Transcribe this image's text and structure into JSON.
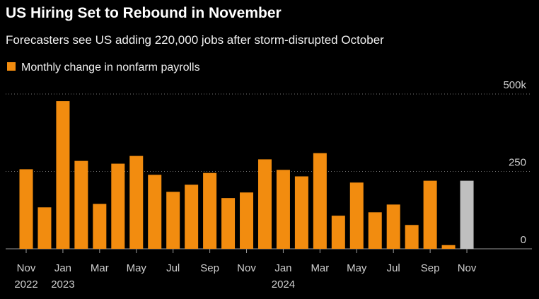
{
  "chart_data": {
    "type": "bar",
    "title": "US Hiring Set to Rebound in November",
    "subtitle": "Forecasters see US adding 220,000 jobs after storm-disrupted October",
    "categories": [
      "Nov",
      null,
      "Jan",
      null,
      "Mar",
      null,
      "May",
      null,
      "Jul",
      null,
      "Sep",
      null,
      "Nov",
      null,
      "Jan",
      null,
      "Mar",
      null,
      "May",
      null,
      "Jul",
      null,
      "Sep",
      null,
      "Nov"
    ],
    "category_years": [
      "2022",
      null,
      "2023",
      null,
      null,
      null,
      null,
      null,
      null,
      null,
      null,
      null,
      null,
      null,
      "2024",
      null,
      null,
      null,
      null,
      null,
      null,
      null,
      null,
      null,
      null
    ],
    "series": [
      {
        "name": "Monthly change in nonfarm payrolls",
        "color": "#f28c0f",
        "values": [
          257,
          134,
          477,
          284,
          145,
          275,
          300,
          239,
          184,
          207,
          245,
          164,
          182,
          289,
          255,
          234,
          309,
          107,
          214,
          118,
          143,
          77,
          220,
          12,
          220
        ],
        "colors": [
          "#f28c0f",
          "#f28c0f",
          "#f28c0f",
          "#f28c0f",
          "#f28c0f",
          "#f28c0f",
          "#f28c0f",
          "#f28c0f",
          "#f28c0f",
          "#f28c0f",
          "#f28c0f",
          "#f28c0f",
          "#f28c0f",
          "#f28c0f",
          "#f28c0f",
          "#f28c0f",
          "#f28c0f",
          "#f28c0f",
          "#f28c0f",
          "#f28c0f",
          "#f28c0f",
          "#f28c0f",
          "#f28c0f",
          "#f28c0f",
          "#bfbfbf"
        ]
      }
    ],
    "ylim": [
      0,
      500
    ],
    "yticks": [
      0,
      250,
      {
        "value": 500,
        "label": "500k"
      }
    ],
    "grid": true
  }
}
